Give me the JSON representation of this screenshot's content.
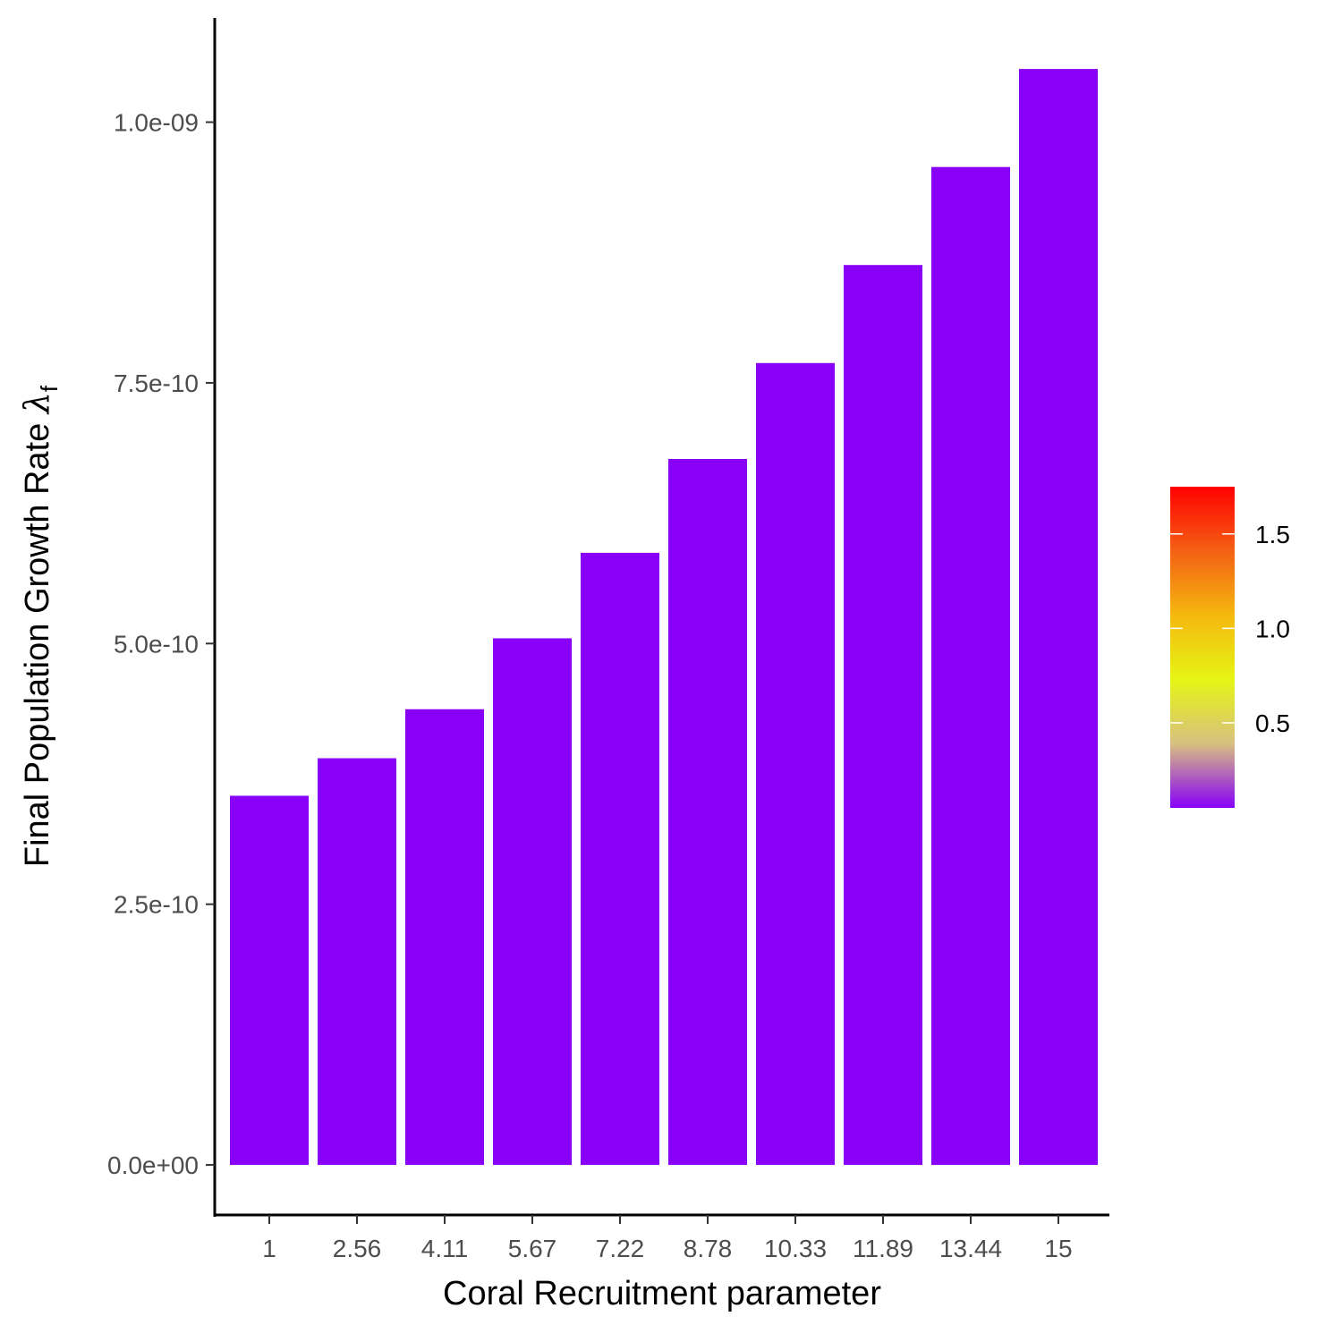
{
  "chart_data": {
    "type": "bar",
    "categories": [
      "1",
      "2.56",
      "4.11",
      "5.67",
      "7.22",
      "8.78",
      "10.33",
      "11.89",
      "13.44",
      "15"
    ],
    "values": [
      3.54e-10,
      3.9e-10,
      4.37e-10,
      5.05e-10,
      5.87e-10,
      6.77e-10,
      7.69e-10,
      8.63e-10,
      9.57e-10,
      1.051e-09
    ],
    "title": "",
    "xlabel": "Coral Recruitment parameter",
    "ylabel_main": "Final Population Growth Rate ",
    "ylabel_symbol": "λ",
    "ylabel_subscript": "f",
    "ylim": [
      -4.8e-11,
      1.1e-09
    ],
    "yticks": [
      0,
      2.5e-10,
      5e-10,
      7.5e-10,
      1e-09
    ],
    "ytick_labels": [
      "0.0e+00",
      "2.5e-10",
      "5.0e-10",
      "7.5e-10",
      "1.0e-09"
    ],
    "bar_color": "#8800f7",
    "grid": false,
    "legend": {
      "placement": "right",
      "type": "colorbar",
      "range": [
        0.05,
        1.75
      ],
      "ticks": [
        0.5,
        1.0,
        1.5
      ],
      "tick_labels": [
        "0.5",
        "1.0",
        "1.5"
      ],
      "colors": [
        "#8800f7",
        "#d8c080",
        "#e6f514",
        "#f5b80e",
        "#f46015",
        "#ff0000"
      ]
    }
  }
}
